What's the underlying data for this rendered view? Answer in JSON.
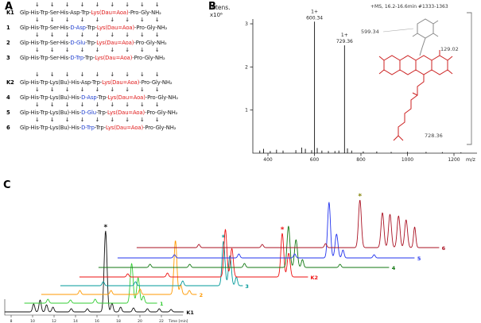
{
  "panel_letters": {
    "a": "A",
    "b": "B",
    "c": "C"
  },
  "colors": {
    "k": "#1a1a1a",
    "r": "#e01818",
    "b": "#2040d0"
  },
  "panel_a": {
    "rows": [
      {
        "id": "K1",
        "arrows": 9,
        "segments": [
          [
            "Glp-His-Trp-Ser-His-Asp-Trp-",
            "k"
          ],
          [
            "Lys(Dau=Aoa)",
            "r"
          ],
          [
            "-Pro-Gly-NH₂",
            "k"
          ]
        ]
      },
      {
        "id": "1",
        "arrows": 9,
        "segments": [
          [
            "Glp-His-Trp-Ser-His-",
            "k"
          ],
          [
            "D-Asp",
            "b"
          ],
          [
            "-Trp-",
            "k"
          ],
          [
            "Lys(Dau=Aoa)",
            "r"
          ],
          [
            "-Pro-Gly-NH₂",
            "k"
          ]
        ]
      },
      {
        "id": "2",
        "arrows": 9,
        "segments": [
          [
            "Glp-His-Trp-Ser-His-",
            "k"
          ],
          [
            "D-Glu",
            "b"
          ],
          [
            "-Trp-",
            "k"
          ],
          [
            "Lys(Dau=Aoa)",
            "r"
          ],
          [
            "-Pro-Gly-NH₂",
            "k"
          ]
        ]
      },
      {
        "id": "3",
        "arrows": 9,
        "segments": [
          [
            "Glp-His-Trp-Ser-His-",
            "k"
          ],
          [
            "D-Trp",
            "b"
          ],
          [
            "-Trp-",
            "k"
          ],
          [
            "Lys(Dau=Aoa)",
            "r"
          ],
          [
            "-Pro-Gly-NH₂",
            "k"
          ]
        ]
      },
      {
        "id": "K2",
        "arrows": 9,
        "gap_before": true,
        "segments": [
          [
            "Glp-His-Trp-Lys(Bu)-His-Asp-Trp-",
            "k"
          ],
          [
            "Lys(Dau=Aoa)",
            "r"
          ],
          [
            "-Pro-Gly-NH₂",
            "k"
          ]
        ]
      },
      {
        "id": "4",
        "arrows": 9,
        "segments": [
          [
            "Glp-His-Trp-Lys(Bu)-His-",
            "k"
          ],
          [
            "D-Asp",
            "b"
          ],
          [
            "-Trp-",
            "k"
          ],
          [
            "Lys(Dau=Aoa)",
            "r"
          ],
          [
            "-Pro-Gly-NH₂",
            "k"
          ]
        ]
      },
      {
        "id": "5",
        "arrows": 9,
        "segments": [
          [
            "Glp-His-Trp-Lys(Bu)-His-",
            "k"
          ],
          [
            "D-Glu",
            "b"
          ],
          [
            "-Trp-",
            "k"
          ],
          [
            "Lys(Dau=Aoa)",
            "r"
          ],
          [
            "-Pro-Gly-NH₂",
            "k"
          ]
        ]
      },
      {
        "id": "6",
        "arrows": 9,
        "segments": [
          [
            "Glp-His-Trp-Lys(Bu)-His-",
            "k"
          ],
          [
            "D-Trp",
            "b"
          ],
          [
            "-Trp-",
            "k"
          ],
          [
            "Lys(Dau=Aoa)",
            "r"
          ],
          [
            "-Pro-Gly-NH₂",
            "k"
          ]
        ]
      }
    ]
  },
  "panel_b": {
    "intens_label": "Intens.",
    "scale_label": "x10⁶",
    "title": "+MS, 16.2-16.6min #1333-1363",
    "mz_label": "m/z",
    "frag1": "599.34",
    "frag2": "129.02",
    "frag3": "728.36"
  },
  "chart_data": [
    {
      "id": "panel_b_mass_spectrum",
      "type": "bar",
      "title": "+MS, 16.2-16.6min #1333-1363",
      "xlabel": "m/z",
      "ylabel": "Intens. x10^6",
      "xlim": [
        340,
        1300
      ],
      "ylim": [
        0,
        3.2
      ],
      "xticks": [
        400,
        600,
        800,
        1000,
        1200
      ],
      "yticks": [
        1,
        2,
        3
      ],
      "fragment_masses": [
        "599.34",
        "129.02",
        "728.36"
      ],
      "peaks": [
        {
          "mz": 365,
          "i": 0.06
        },
        {
          "mz": 381,
          "i": 0.1
        },
        {
          "mz": 410,
          "i": 0.05
        },
        {
          "mz": 437,
          "i": 0.08
        },
        {
          "mz": 465,
          "i": 0.06
        },
        {
          "mz": 520,
          "i": 0.07
        },
        {
          "mz": 545,
          "i": 0.13
        },
        {
          "mz": 561,
          "i": 0.1
        },
        {
          "mz": 588,
          "i": 0.07
        },
        {
          "mz": 600.34,
          "i": 3.05,
          "charge": "1+",
          "labeled": true
        },
        {
          "mz": 612,
          "i": 0.12
        },
        {
          "mz": 632,
          "i": 0.06
        },
        {
          "mz": 660,
          "i": 0.05
        },
        {
          "mz": 688,
          "i": 0.05
        },
        {
          "mz": 705,
          "i": 0.06
        },
        {
          "mz": 729.36,
          "i": 2.5,
          "charge": "1+",
          "labeled": true
        },
        {
          "mz": 742,
          "i": 0.11
        },
        {
          "mz": 760,
          "i": 0.06
        },
        {
          "mz": 810,
          "i": 0.04
        },
        {
          "mz": 868,
          "i": 0.04
        },
        {
          "mz": 930,
          "i": 0.03
        },
        {
          "mz": 1000,
          "i": 0.03
        },
        {
          "mz": 1080,
          "i": 0.03
        },
        {
          "mz": 1150,
          "i": 0.025
        },
        {
          "mz": 1230,
          "i": 0.02
        }
      ]
    },
    {
      "id": "panel_c_chromatograms",
      "type": "line",
      "xlabel": "Time [min]",
      "xticks": [
        8,
        10,
        12,
        14,
        16,
        18,
        20,
        22
      ],
      "traces": [
        {
          "name": "K1",
          "color": "#111111",
          "x_offset": 0,
          "baseline": 168,
          "t_range": [
            7.4,
            24.1
          ],
          "peaks": [
            [
              10.1,
              10
            ],
            [
              10.7,
              15
            ],
            [
              11.3,
              9
            ],
            [
              11.9,
              6
            ],
            [
              13.6,
              4
            ],
            [
              15.1,
              4
            ],
            [
              16.8,
              102
            ],
            [
              17.4,
              11
            ],
            [
              18.2,
              6
            ],
            [
              19.4,
              5
            ],
            [
              20.7,
              4
            ],
            [
              21.8,
              4
            ],
            [
              22.9,
              3
            ]
          ],
          "star": {
            "t": 16.8,
            "color": "#111111"
          }
        },
        {
          "name": "1",
          "color": "#33cc33",
          "x_offset": 22,
          "baseline": 157,
          "t_range": [
            7.6,
            20.0
          ],
          "peaks": [
            [
              9.8,
              5
            ],
            [
              11.9,
              4
            ],
            [
              14.2,
              5
            ],
            [
              17.6,
              50
            ],
            [
              18.2,
              32
            ],
            [
              18.7,
              9
            ]
          ]
        },
        {
          "name": "2",
          "color": "#ff9900",
          "x_offset": 46,
          "baseline": 146,
          "t_range": [
            7.4,
            21.9
          ],
          "peaks": [
            [
              11.0,
              5
            ],
            [
              13.9,
              5
            ],
            [
              16.6,
              7
            ],
            [
              19.9,
              68
            ],
            [
              20.4,
              12
            ],
            [
              21.2,
              5
            ]
          ]
        },
        {
          "name": "3",
          "color": "#009999",
          "x_offset": 70,
          "baseline": 135,
          "t_range": [
            7.4,
            24.4
          ],
          "peaks": [
            [
              11.4,
              5
            ],
            [
              14.4,
              5
            ],
            [
              18.8,
              6
            ],
            [
              22.6,
              56
            ],
            [
              23.2,
              38
            ],
            [
              23.8,
              11
            ]
          ],
          "star": {
            "t": 22.6,
            "color": "#009999"
          }
        },
        {
          "name": "K2",
          "color": "#ee1111",
          "x_offset": 94,
          "baseline": 124,
          "t_range": [
            7.4,
            28.7
          ],
          "peaks": [
            [
              11.9,
              4
            ],
            [
              15.6,
              5
            ],
            [
              21.0,
              60
            ],
            [
              21.6,
              36
            ],
            [
              26.3,
              55
            ],
            [
              26.9,
              30
            ]
          ],
          "star": {
            "t": 26.3,
            "color": "#ee1111"
          }
        },
        {
          "name": "4",
          "color": "#117711",
          "x_offset": 118,
          "baseline": 112,
          "t_range": [
            7.4,
            34.5
          ],
          "peaks": [
            [
              12.2,
              4
            ],
            [
              15.9,
              4
            ],
            [
              21.0,
              5
            ],
            [
              25.1,
              52
            ],
            [
              25.8,
              35
            ],
            [
              26.4,
              10
            ],
            [
              29.9,
              4
            ]
          ]
        },
        {
          "name": "5",
          "color": "#2233ee",
          "x_offset": 142,
          "baseline": 100,
          "t_range": [
            7.4,
            35.1
          ],
          "peaks": [
            [
              12.7,
              4
            ],
            [
              18.7,
              5
            ],
            [
              23.9,
              5
            ],
            [
              27.1,
              70
            ],
            [
              27.8,
              30
            ],
            [
              28.4,
              10
            ],
            [
              31.3,
              4
            ]
          ]
        },
        {
          "name": "6",
          "color": "#aa1122",
          "x_offset": 166,
          "baseline": 87,
          "t_range": [
            7.4,
            35.6
          ],
          "peaks": [
            [
              13.2,
              4
            ],
            [
              19.1,
              4
            ],
            [
              25.0,
              5
            ],
            [
              28.2,
              60
            ],
            [
              30.3,
              44
            ],
            [
              31.0,
              42
            ],
            [
              31.8,
              40
            ],
            [
              32.5,
              35
            ],
            [
              33.3,
              26
            ]
          ],
          "star": {
            "t": 28.2,
            "color": "#808000"
          }
        }
      ]
    }
  ]
}
